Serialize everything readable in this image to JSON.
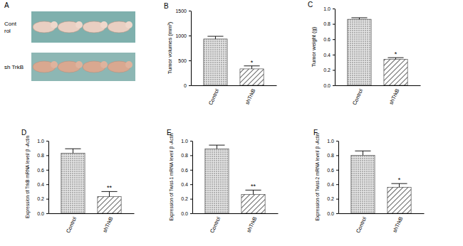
{
  "panel_a": {
    "panel": "A",
    "rows": [
      [
        "Cont",
        "rol"
      ],
      [
        "sh TrkB"
      ]
    ]
  },
  "chart_data": [
    {
      "type": "bar",
      "panel": "B",
      "y_label": "Tumor volumes (mm³)",
      "categories": [
        "Control",
        "shTrkB"
      ],
      "values": [
        930,
        330
      ],
      "errors": [
        55,
        60
      ],
      "ylim": [
        0,
        1500
      ],
      "yticks": [
        0,
        500,
        1000,
        1500
      ],
      "annotations": [
        {
          "text": "*",
          "category": "shTrkB"
        }
      ]
    },
    {
      "type": "bar",
      "panel": "C",
      "y_label": "Tumor weight (g)",
      "categories": [
        "Control",
        "shTrkB"
      ],
      "values": [
        0.86,
        0.34
      ],
      "errors": [
        0.02,
        0.02
      ],
      "ylim": [
        0,
        1.0
      ],
      "yticks": [
        {
          "value": 0,
          "label": "0.0"
        },
        {
          "value": 0.2,
          "label": "0.2"
        },
        {
          "value": 0.4,
          "label": "0.4"
        },
        {
          "value": 0.6,
          "label": "0.6"
        },
        {
          "value": 0.8,
          "label": "0.8"
        },
        {
          "value": 1.0,
          "label": "1.0"
        }
      ],
      "annotations": [
        {
          "text": "*",
          "category": "shTrkB"
        }
      ]
    },
    {
      "type": "bar",
      "panel": "D",
      "y_label": "Expression of TrkB mRNA level/ β -Actin",
      "categories": [
        "Control",
        "shTrkB"
      ],
      "values": [
        0.83,
        0.23
      ],
      "errors": [
        0.06,
        0.07
      ],
      "ylim": [
        0,
        1.0
      ],
      "yticks": [
        {
          "value": 0,
          "label": "0.0"
        },
        {
          "value": 0.2,
          "label": "0.2"
        },
        {
          "value": 0.4,
          "label": "0.4"
        },
        {
          "value": 0.6,
          "label": "0.6"
        },
        {
          "value": 0.8,
          "label": "0.8"
        },
        {
          "value": 1.0,
          "label": "1.0"
        }
      ],
      "annotations": [
        {
          "text": "**",
          "category": "shTrkB"
        }
      ]
    },
    {
      "type": "bar",
      "panel": "E",
      "y_label": "Expression of Twist-1 mRNA level/ β -Actin",
      "categories": [
        "Control",
        "shTrkB"
      ],
      "values": [
        0.89,
        0.26
      ],
      "errors": [
        0.05,
        0.06
      ],
      "ylim": [
        0,
        1.0
      ],
      "yticks": [
        {
          "value": 0,
          "label": "0.0"
        },
        {
          "value": 0.2,
          "label": "0.2"
        },
        {
          "value": 0.4,
          "label": "0.4"
        },
        {
          "value": 0.6,
          "label": "0.6"
        },
        {
          "value": 0.8,
          "label": "0.8"
        },
        {
          "value": 1.0,
          "label": "1.0"
        }
      ],
      "annotations": [
        {
          "text": "**",
          "category": "shTrkB"
        }
      ]
    },
    {
      "type": "bar",
      "panel": "F",
      "y_label": "Expression of Twist-2 mRNA level/ β -Actin",
      "categories": [
        "Control",
        "shTrkB"
      ],
      "values": [
        0.8,
        0.36
      ],
      "errors": [
        0.06,
        0.05
      ],
      "ylim": [
        0,
        1.0
      ],
      "yticks": [
        {
          "value": 0,
          "label": "0.0"
        },
        {
          "value": 0.2,
          "label": "0.2"
        },
        {
          "value": 0.4,
          "label": "0.4"
        },
        {
          "value": 0.6,
          "label": "0.6"
        },
        {
          "value": 0.8,
          "label": "0.8"
        },
        {
          "value": 1.0,
          "label": "1.0"
        }
      ],
      "annotations": [
        {
          "text": "*",
          "category": "shTrkB"
        }
      ]
    }
  ]
}
